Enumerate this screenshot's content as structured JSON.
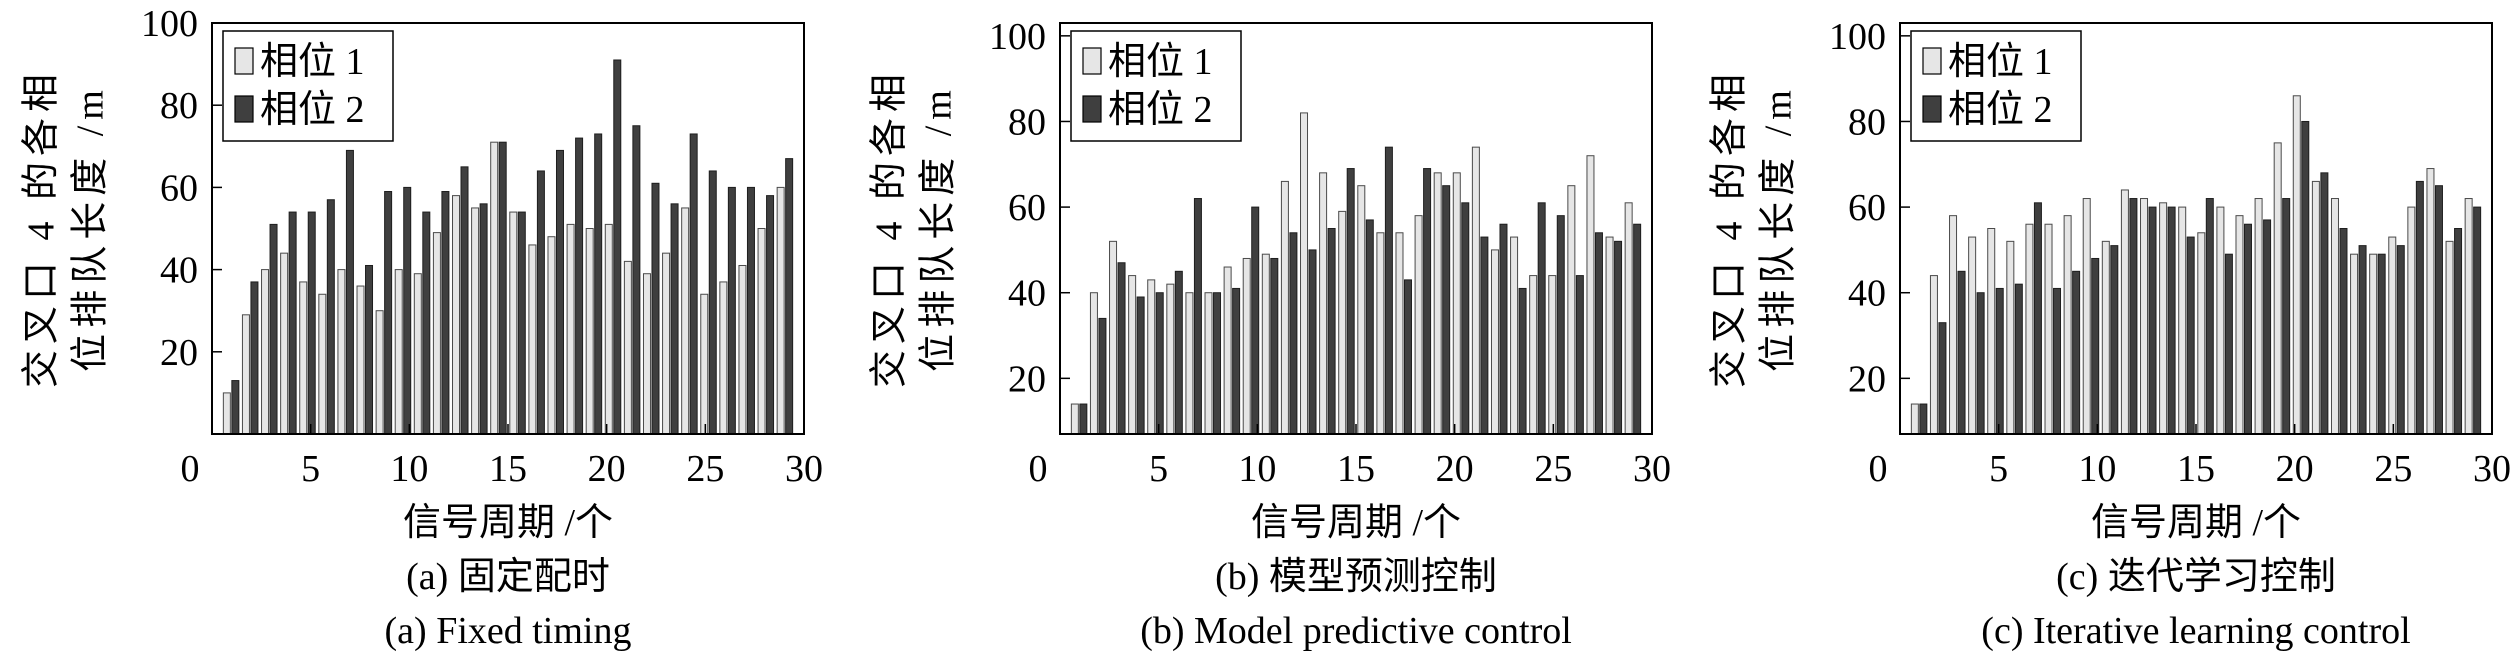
{
  "chart_data": [
    {
      "type": "bar",
      "caption": [
        "(a) 固定配时",
        "(a) Fixed timing"
      ],
      "xlabel": "信号周期 /个",
      "ylabel_lines": [
        "交叉口 4 的各相",
        "位排队长度 /m"
      ],
      "categories": [
        1,
        2,
        3,
        4,
        5,
        6,
        7,
        8,
        9,
        10,
        11,
        12,
        13,
        14,
        15,
        16,
        17,
        18,
        19,
        20,
        21,
        22,
        23,
        24,
        25,
        26,
        27,
        28,
        29,
        30
      ],
      "series": [
        {
          "name": "相位 1",
          "color": "#e6e6e6",
          "values": [
            10,
            29,
            40,
            44,
            37,
            34,
            40,
            36,
            30,
            40,
            39,
            49,
            58,
            55,
            71,
            54,
            46,
            48,
            51,
            50,
            51,
            42,
            39,
            44,
            55,
            34,
            37,
            41,
            50,
            60
          ]
        },
        {
          "name": "相位 2",
          "color": "#3f3f3f",
          "values": [
            13,
            37,
            51,
            54,
            54,
            57,
            69,
            41,
            59,
            60,
            54,
            59,
            65,
            56,
            71,
            54,
            64,
            69,
            72,
            73,
            91,
            75,
            61,
            56,
            73,
            64,
            60,
            60,
            58,
            67
          ]
        }
      ],
      "xlim": [
        0,
        30
      ],
      "xticks": [
        0,
        5,
        10,
        15,
        20,
        25,
        30
      ],
      "ylim": [
        0,
        100
      ],
      "yticks": [
        20,
        40,
        60,
        80,
        100
      ],
      "grid": false,
      "legend": "top-left"
    },
    {
      "type": "bar",
      "caption": [
        "(b) 模型预测控制",
        "(b) Model predictive control"
      ],
      "xlabel": "信号周期 /个",
      "ylabel_lines": [
        "交叉口 4 的各相",
        "位排队长度 /m"
      ],
      "categories": [
        1,
        2,
        3,
        4,
        5,
        6,
        7,
        8,
        9,
        10,
        11,
        12,
        13,
        14,
        15,
        16,
        17,
        18,
        19,
        20,
        21,
        22,
        23,
        24,
        25,
        26,
        27,
        28,
        29,
        30
      ],
      "series": [
        {
          "name": "相位 1",
          "color": "#e6e6e6",
          "values": [
            14,
            40,
            52,
            44,
            43,
            42,
            40,
            40,
            46,
            48,
            49,
            66,
            82,
            68,
            59,
            65,
            54,
            54,
            58,
            68,
            68,
            74,
            50,
            53,
            44,
            44,
            65,
            72,
            53,
            61
          ]
        },
        {
          "name": "相位 2",
          "color": "#3f3f3f",
          "values": [
            14,
            34,
            47,
            39,
            40,
            45,
            62,
            40,
            41,
            60,
            48,
            54,
            50,
            55,
            69,
            57,
            74,
            43,
            69,
            65,
            61,
            53,
            56,
            41,
            61,
            58,
            44,
            54,
            52,
            56
          ]
        }
      ],
      "xlim": [
        0,
        30
      ],
      "xticks": [
        0,
        5,
        10,
        15,
        20,
        25,
        30
      ],
      "ylim": [
        7,
        103
      ],
      "yticks": [
        20,
        40,
        60,
        80,
        100
      ],
      "grid": false,
      "legend": "top-left"
    },
    {
      "type": "bar",
      "caption": [
        "(c) 迭代学习控制",
        "(c) Iterative learning control"
      ],
      "xlabel": "信号周期 /个",
      "ylabel_lines": [
        "交叉口 4 的各相",
        "位排队长度 /m"
      ],
      "categories": [
        1,
        2,
        3,
        4,
        5,
        6,
        7,
        8,
        9,
        10,
        11,
        12,
        13,
        14,
        15,
        16,
        17,
        18,
        19,
        20,
        21,
        22,
        23,
        24,
        25,
        26,
        27,
        28,
        29,
        30
      ],
      "series": [
        {
          "name": "相位 1",
          "color": "#e6e6e6",
          "values": [
            14,
            44,
            58,
            53,
            55,
            52,
            56,
            56,
            58,
            62,
            52,
            64,
            62,
            61,
            60,
            54,
            60,
            58,
            62,
            75,
            86,
            66,
            62,
            49,
            49,
            53,
            60,
            69,
            52,
            62
          ]
        },
        {
          "name": "相位 2",
          "color": "#3f3f3f",
          "values": [
            14,
            33,
            45,
            40,
            41,
            42,
            61,
            41,
            45,
            48,
            51,
            62,
            60,
            60,
            53,
            62,
            49,
            56,
            57,
            62,
            80,
            68,
            55,
            51,
            49,
            51,
            66,
            65,
            55,
            60
          ]
        }
      ],
      "xlim": [
        0,
        30
      ],
      "xticks": [
        0,
        5,
        10,
        15,
        20,
        25,
        30
      ],
      "ylim": [
        7,
        103
      ],
      "yticks": [
        20,
        40,
        60,
        80,
        100
      ],
      "grid": false,
      "legend": "top-left"
    }
  ]
}
